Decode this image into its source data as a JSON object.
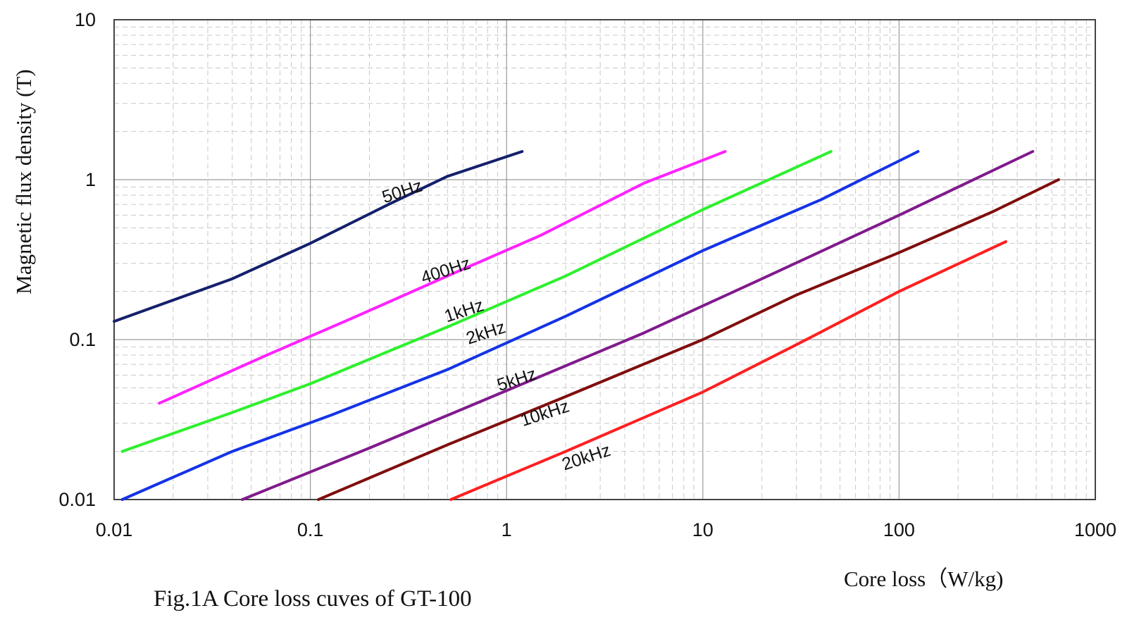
{
  "chart_data": {
    "type": "line",
    "xscale": "log",
    "yscale": "log",
    "xlim": [
      0.01,
      1000
    ],
    "ylim": [
      0.01,
      10
    ],
    "grid": true,
    "xlabel": "Core loss（W/kg)",
    "ylabel": "Magnetic flux density (T)",
    "caption": "Fig.1A Core loss cuves of GT-100",
    "xticks": [
      "0.01",
      "0.1",
      "1",
      "10",
      "100",
      "1000"
    ],
    "yticks": [
      "10",
      "1",
      "0.1",
      "0.01"
    ],
    "series": [
      {
        "name": "50Hz",
        "color": "#14206b",
        "x": [
          0.01,
          0.04,
          0.1,
          0.25,
          0.5,
          1.2
        ],
        "y": [
          0.13,
          0.24,
          0.4,
          0.7,
          1.05,
          1.5
        ]
      },
      {
        "name": "400Hz",
        "color": "#ff22ff",
        "x": [
          0.017,
          0.06,
          0.15,
          0.5,
          1.5,
          5,
          13
        ],
        "y": [
          0.04,
          0.08,
          0.13,
          0.25,
          0.45,
          0.95,
          1.5
        ]
      },
      {
        "name": "1kHz",
        "color": "#2ef02e",
        "x": [
          0.011,
          0.04,
          0.1,
          0.5,
          2,
          10,
          45
        ],
        "y": [
          0.02,
          0.035,
          0.053,
          0.12,
          0.25,
          0.65,
          1.5
        ]
      },
      {
        "name": "2kHz",
        "color": "#1433e6",
        "x": [
          0.011,
          0.04,
          0.13,
          0.5,
          2,
          10,
          40,
          125
        ],
        "y": [
          0.01,
          0.02,
          0.034,
          0.065,
          0.14,
          0.36,
          0.75,
          1.5
        ]
      },
      {
        "name": "5kHz",
        "color": "#801a8c",
        "x": [
          0.045,
          0.2,
          1,
          5,
          20,
          100,
          200,
          480
        ],
        "y": [
          0.01,
          0.021,
          0.048,
          0.11,
          0.24,
          0.6,
          0.9,
          1.5
        ]
      },
      {
        "name": "10kHz",
        "color": "#800d0d",
        "x": [
          0.11,
          0.5,
          2,
          10,
          30,
          100,
          300,
          650
        ],
        "y": [
          0.01,
          0.022,
          0.044,
          0.1,
          0.19,
          0.35,
          0.63,
          1.0
        ]
      },
      {
        "name": "20kHz",
        "color": "#ff1f1f",
        "x": [
          0.52,
          2,
          10,
          30,
          100,
          350
        ],
        "y": [
          0.01,
          0.02,
          0.047,
          0.093,
          0.2,
          0.41
        ]
      }
    ]
  }
}
